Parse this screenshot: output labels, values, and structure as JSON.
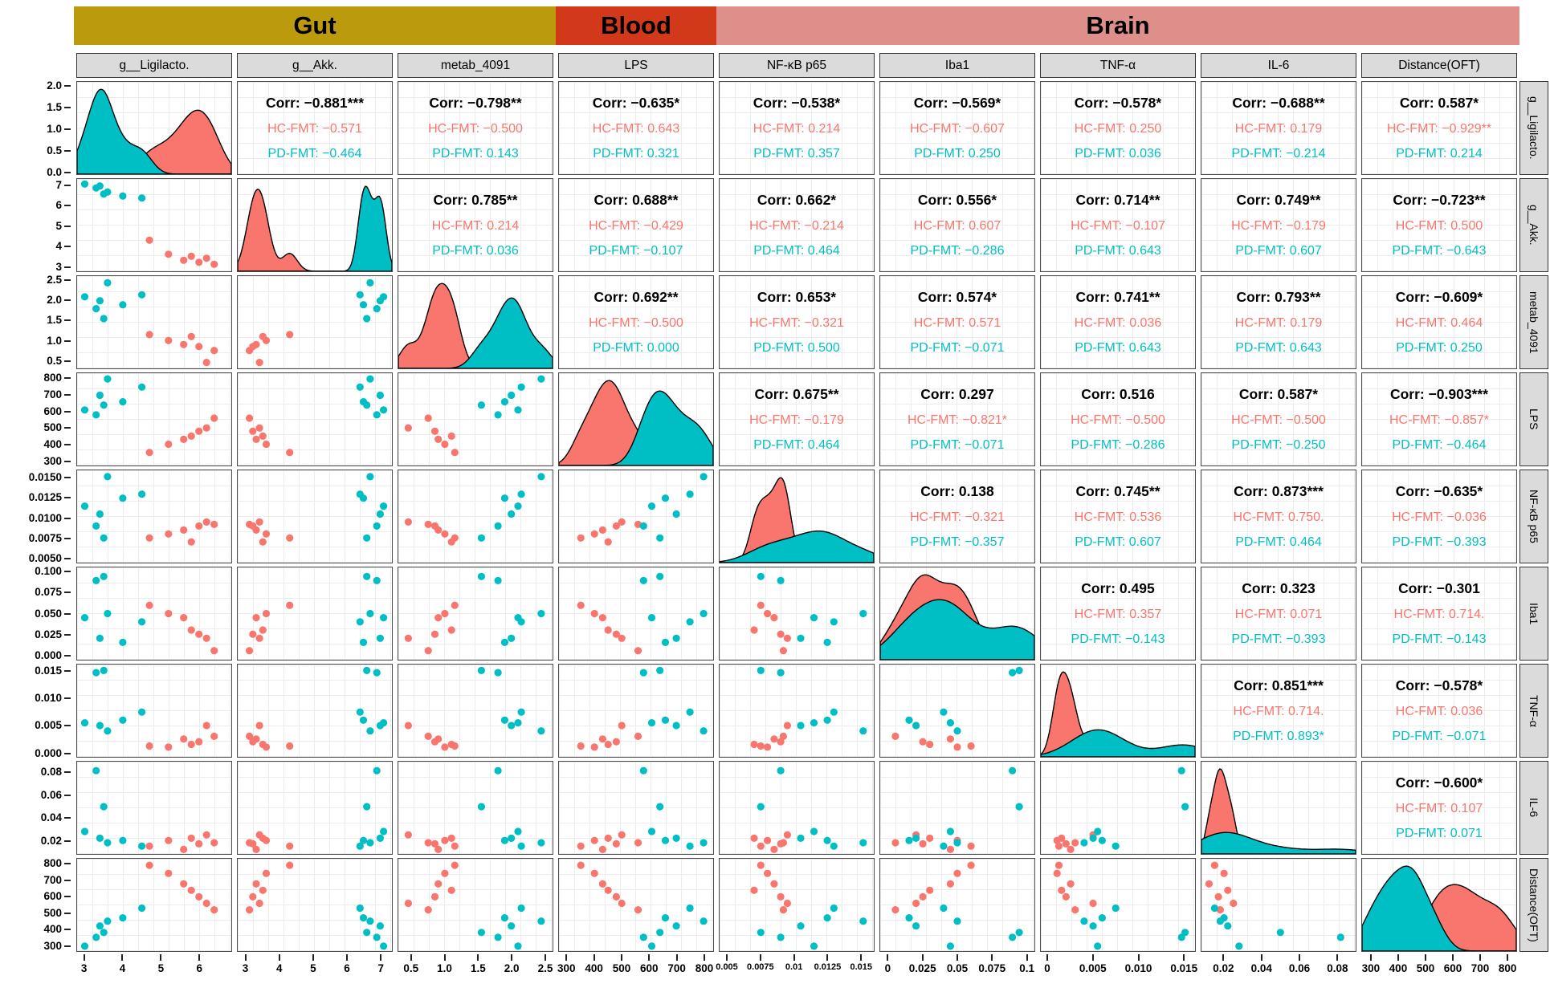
{
  "header_bands": [
    {
      "label": "Gut",
      "color": "#BC9A0D"
    },
    {
      "label": "Blood",
      "color": "#D2391B"
    },
    {
      "label": "Brain",
      "color": "#DE8F89"
    }
  ],
  "chart_data": {
    "type": "scatterplot_matrix",
    "corr_prefix": "Corr",
    "groups": {
      "hc": {
        "label": "HC-FMT",
        "color": "#F8766D"
      },
      "pd": {
        "label": "PD-FMT",
        "color": "#00BFC4"
      }
    },
    "density_axis": {
      "min": -0.06,
      "max": 2.12,
      "ticks": [
        {
          "v": 0,
          "label": "0.0"
        },
        {
          "v": 0.5,
          "label": "0.5"
        },
        {
          "v": 1,
          "label": "1.0"
        },
        {
          "v": 1.5,
          "label": "1.5"
        },
        {
          "v": 2,
          "label": "2.0"
        }
      ]
    },
    "variables": [
      {
        "id": "lig",
        "label": "g__Ligilacto.",
        "band": "Gut",
        "min": 2.8,
        "max": 6.85,
        "small_x": false,
        "y_ticks": [
          {
            "v": 3,
            "label": "3"
          },
          {
            "v": 4,
            "label": "4"
          },
          {
            "v": 5,
            "label": "5"
          },
          {
            "v": 6,
            "label": "6"
          }
        ],
        "x_ticks": [
          {
            "v": 3,
            "label": "3"
          },
          {
            "v": 4,
            "label": "4"
          },
          {
            "v": 5,
            "label": "5"
          },
          {
            "v": 6,
            "label": "6"
          }
        ]
      },
      {
        "id": "akk",
        "label": "g__Akk.",
        "band": "Gut",
        "min": 2.75,
        "max": 7.35,
        "small_x": false,
        "y_ticks": [
          {
            "v": 3,
            "label": "3"
          },
          {
            "v": 4,
            "label": "4"
          },
          {
            "v": 5,
            "label": "5"
          },
          {
            "v": 6,
            "label": "6"
          },
          {
            "v": 7,
            "label": "7"
          }
        ],
        "x_ticks": [
          {
            "v": 3,
            "label": "3"
          },
          {
            "v": 4,
            "label": "4"
          },
          {
            "v": 5,
            "label": "5"
          },
          {
            "v": 6,
            "label": "6"
          },
          {
            "v": 7,
            "label": "7"
          }
        ]
      },
      {
        "id": "metab",
        "label": "metab_4091",
        "band": "Gut",
        "min": 0.3,
        "max": 2.62,
        "small_x": false,
        "y_ticks": [
          {
            "v": 0.5,
            "label": "0.5"
          },
          {
            "v": 1,
            "label": "1.0"
          },
          {
            "v": 1.5,
            "label": "1.5"
          },
          {
            "v": 2,
            "label": "2.0"
          },
          {
            "v": 2.5,
            "label": "2.5"
          }
        ],
        "x_ticks": [
          {
            "v": 0.5,
            "label": "0.5"
          },
          {
            "v": 1,
            "label": "1.0"
          },
          {
            "v": 1.5,
            "label": "1.5"
          },
          {
            "v": 2,
            "label": "2.0"
          },
          {
            "v": 2.5,
            "label": "2.5"
          }
        ]
      },
      {
        "id": "lps",
        "label": "LPS",
        "band": "Blood",
        "min": 270,
        "max": 835,
        "small_x": false,
        "y_ticks": [
          {
            "v": 300,
            "label": "300"
          },
          {
            "v": 400,
            "label": "400"
          },
          {
            "v": 500,
            "label": "500"
          },
          {
            "v": 600,
            "label": "600"
          },
          {
            "v": 700,
            "label": "700"
          },
          {
            "v": 800,
            "label": "800"
          }
        ],
        "x_ticks": [
          {
            "v": 300,
            "label": "300"
          },
          {
            "v": 400,
            "label": "400"
          },
          {
            "v": 500,
            "label": "500"
          },
          {
            "v": 600,
            "label": "600"
          },
          {
            "v": 700,
            "label": "700"
          },
          {
            "v": 800,
            "label": "800"
          }
        ]
      },
      {
        "id": "nfkb",
        "label": "NF-κB p65",
        "band": "Brain",
        "min": 0.0044,
        "max": 0.016,
        "small_x": true,
        "y_ticks": [
          {
            "v": 0.005,
            "label": "0.0050"
          },
          {
            "v": 0.0075,
            "label": "0.0075"
          },
          {
            "v": 0.01,
            "label": "0.0100"
          },
          {
            "v": 0.0125,
            "label": "0.0125"
          },
          {
            "v": 0.015,
            "label": "0.0150"
          }
        ],
        "x_ticks": [
          {
            "v": 0.005,
            "label": "0.005"
          },
          {
            "v": 0.0075,
            "label": "0.0075"
          },
          {
            "v": 0.01,
            "label": "0.01"
          },
          {
            "v": 0.0125,
            "label": "0.0125"
          },
          {
            "v": 0.015,
            "label": "0.015"
          }
        ]
      },
      {
        "id": "iba1",
        "label": "Iba1",
        "band": "Brain",
        "min": -0.006,
        "max": 0.106,
        "small_x": false,
        "y_ticks": [
          {
            "v": 0,
            "label": "0.000"
          },
          {
            "v": 0.025,
            "label": "0.025"
          },
          {
            "v": 0.05,
            "label": "0.050"
          },
          {
            "v": 0.075,
            "label": "0.075"
          },
          {
            "v": 0.1,
            "label": "0.100"
          }
        ],
        "x_ticks": [
          {
            "v": 0,
            "label": "0"
          },
          {
            "v": 0.025,
            "label": "0.025"
          },
          {
            "v": 0.05,
            "label": "0.05"
          },
          {
            "v": 0.075,
            "label": "0.075"
          },
          {
            "v": 0.1,
            "label": "0.1"
          }
        ]
      },
      {
        "id": "tnf",
        "label": "TNF-α",
        "band": "Brain",
        "min": -0.0008,
        "max": 0.0163,
        "small_x": false,
        "y_ticks": [
          {
            "v": 0,
            "label": "0.000"
          },
          {
            "v": 0.005,
            "label": "0.005"
          },
          {
            "v": 0.01,
            "label": "0.010"
          },
          {
            "v": 0.015,
            "label": "0.015"
          }
        ],
        "x_ticks": [
          {
            "v": 0,
            "label": "0"
          },
          {
            "v": 0.005,
            "label": "0.005"
          },
          {
            "v": 0.01,
            "label": "0.010"
          },
          {
            "v": 0.015,
            "label": "0.015"
          }
        ]
      },
      {
        "id": "il6",
        "label": "IL-6",
        "band": "Brain",
        "min": 0.008,
        "max": 0.09,
        "small_x": false,
        "y_ticks": [
          {
            "v": 0.02,
            "label": "0.02"
          },
          {
            "v": 0.04,
            "label": "0.04"
          },
          {
            "v": 0.06,
            "label": "0.06"
          },
          {
            "v": 0.08,
            "label": "0.08"
          }
        ],
        "x_ticks": [
          {
            "v": 0.02,
            "label": "0.02"
          },
          {
            "v": 0.04,
            "label": "0.04"
          },
          {
            "v": 0.06,
            "label": "0.06"
          },
          {
            "v": 0.08,
            "label": "0.08"
          }
        ]
      },
      {
        "id": "dist",
        "label": "Distance(OFT)",
        "band": "Brain",
        "min": 265,
        "max": 835,
        "small_x": false,
        "y_ticks": [
          {
            "v": 300,
            "label": "300"
          },
          {
            "v": 400,
            "label": "400"
          },
          {
            "v": 500,
            "label": "500"
          },
          {
            "v": 600,
            "label": "600"
          },
          {
            "v": 700,
            "label": "700"
          },
          {
            "v": 800,
            "label": "800"
          }
        ],
        "x_ticks": [
          {
            "v": 300,
            "label": "300"
          },
          {
            "v": 400,
            "label": "400"
          },
          {
            "v": 500,
            "label": "500"
          },
          {
            "v": 600,
            "label": "600"
          },
          {
            "v": 700,
            "label": "700"
          },
          {
            "v": 800,
            "label": "800"
          }
        ]
      }
    ],
    "correlations": {
      "0_1": {
        "corr": "−0.881***",
        "hc": "−0.571",
        "pd": "−0.464"
      },
      "0_2": {
        "corr": "−0.798**",
        "hc": "−0.500",
        "pd": "0.143"
      },
      "0_3": {
        "corr": "−0.635*",
        "hc": "0.643",
        "pd": "0.321"
      },
      "0_4": {
        "corr": "−0.538*",
        "hc": "0.214",
        "pd": "0.357"
      },
      "0_5": {
        "corr": "−0.569*",
        "hc": "−0.607",
        "pd": "0.250"
      },
      "0_6": {
        "corr": "−0.578*",
        "hc": "0.250",
        "pd": "0.036"
      },
      "0_7": {
        "corr": "−0.688**",
        "hc": "0.179",
        "pd": "−0.214"
      },
      "0_8": {
        "corr": "0.587*",
        "hc": "−0.929**",
        "pd": "0.214"
      },
      "1_2": {
        "corr": "0.785**",
        "hc": "0.214",
        "pd": "0.036"
      },
      "1_3": {
        "corr": "0.688**",
        "hc": "−0.429",
        "pd": "−0.107"
      },
      "1_4": {
        "corr": "0.662*",
        "hc": "−0.214",
        "pd": "0.464"
      },
      "1_5": {
        "corr": "0.556*",
        "hc": "0.607",
        "pd": "−0.286"
      },
      "1_6": {
        "corr": "0.714**",
        "hc": "−0.107",
        "pd": "0.643"
      },
      "1_7": {
        "corr": "0.749**",
        "hc": "−0.179",
        "pd": "0.607"
      },
      "1_8": {
        "corr": "−0.723**",
        "hc": "0.500",
        "pd": "−0.643"
      },
      "2_3": {
        "corr": "0.692**",
        "hc": "−0.500",
        "pd": "0.000"
      },
      "2_4": {
        "corr": "0.653*",
        "hc": "−0.321",
        "pd": "0.500"
      },
      "2_5": {
        "corr": "0.574*",
        "hc": "0.571",
        "pd": "−0.071"
      },
      "2_6": {
        "corr": "0.741**",
        "hc": "0.036",
        "pd": "0.643"
      },
      "2_7": {
        "corr": "0.793**",
        "hc": "0.179",
        "pd": "0.643"
      },
      "2_8": {
        "corr": "−0.609*",
        "hc": "0.464",
        "pd": "0.250"
      },
      "3_4": {
        "corr": "0.675**",
        "hc": "−0.179",
        "pd": "0.464"
      },
      "3_5": {
        "corr": "0.297",
        "hc": "−0.821*",
        "pd": "−0.071"
      },
      "3_6": {
        "corr": "0.516",
        "hc": "−0.500",
        "pd": "−0.286"
      },
      "3_7": {
        "corr": "0.587*",
        "hc": "−0.500",
        "pd": "−0.250"
      },
      "3_8": {
        "corr": "−0.903***",
        "hc": "−0.857*",
        "pd": "−0.464"
      },
      "4_5": {
        "corr": "0.138",
        "hc": "−0.321",
        "pd": "−0.357"
      },
      "4_6": {
        "corr": "0.745**",
        "hc": "0.536",
        "pd": "0.607"
      },
      "4_7": {
        "corr": "0.873***",
        "hc": "0.750.",
        "pd": "0.464"
      },
      "4_8": {
        "corr": "−0.635*",
        "hc": "−0.036",
        "pd": "−0.393"
      },
      "5_6": {
        "corr": "0.495",
        "hc": "0.357",
        "pd": "−0.143"
      },
      "5_7": {
        "corr": "0.323",
        "hc": "0.071",
        "pd": "−0.393"
      },
      "5_8": {
        "corr": "−0.301",
        "hc": "0.714.",
        "pd": "−0.143"
      },
      "6_7": {
        "corr": "0.851***",
        "hc": "0.714.",
        "pd": "0.893*"
      },
      "6_8": {
        "corr": "−0.578*",
        "hc": "0.036",
        "pd": "−0.071"
      },
      "7_8": {
        "corr": "−0.600*",
        "hc": "0.107",
        "pd": "0.071"
      }
    },
    "samples": {
      "hc": {
        "lig": [
          4.7,
          5.2,
          5.6,
          5.8,
          6.0,
          6.2,
          6.4
        ],
        "akk": [
          4.3,
          3.6,
          3.3,
          3.5,
          3.2,
          3.4,
          3.1
        ],
        "metab": [
          1.15,
          1.0,
          0.9,
          1.1,
          0.85,
          0.45,
          0.75
        ],
        "lps": [
          350,
          400,
          430,
          450,
          480,
          500,
          560
        ],
        "nfkb": [
          0.0075,
          0.008,
          0.0085,
          0.007,
          0.009,
          0.0095,
          0.0092
        ],
        "iba1": [
          0.06,
          0.05,
          0.045,
          0.03,
          0.025,
          0.02,
          0.005
        ],
        "tnf": [
          0.0012,
          0.001,
          0.0025,
          0.0015,
          0.002,
          0.005,
          0.003
        ],
        "il6": [
          0.015,
          0.02,
          0.012,
          0.022,
          0.017,
          0.025,
          0.018
        ],
        "dist": [
          795,
          745,
          680,
          640,
          600,
          560,
          520
        ]
      },
      "pd": {
        "lig": [
          3.0,
          3.3,
          3.4,
          3.5,
          3.6,
          4.0,
          4.5
        ],
        "akk": [
          7.1,
          6.9,
          7.0,
          6.6,
          6.7,
          6.5,
          6.4
        ],
        "metab": [
          2.1,
          1.8,
          2.0,
          1.55,
          2.45,
          1.9,
          2.15
        ],
        "lps": [
          610,
          580,
          700,
          640,
          800,
          660,
          750
        ],
        "nfkb": [
          0.0115,
          0.009,
          0.0105,
          0.0075,
          0.0152,
          0.0125,
          0.013
        ],
        "iba1": [
          0.045,
          0.09,
          0.02,
          0.095,
          0.05,
          0.015,
          0.04
        ],
        "tnf": [
          0.0055,
          0.0148,
          0.005,
          0.0152,
          0.004,
          0.006,
          0.0075
        ],
        "il6": [
          0.028,
          0.082,
          0.022,
          0.05,
          0.018,
          0.02,
          0.015
        ],
        "dist": [
          295,
          350,
          420,
          380,
          450,
          470,
          530
        ]
      }
    }
  }
}
